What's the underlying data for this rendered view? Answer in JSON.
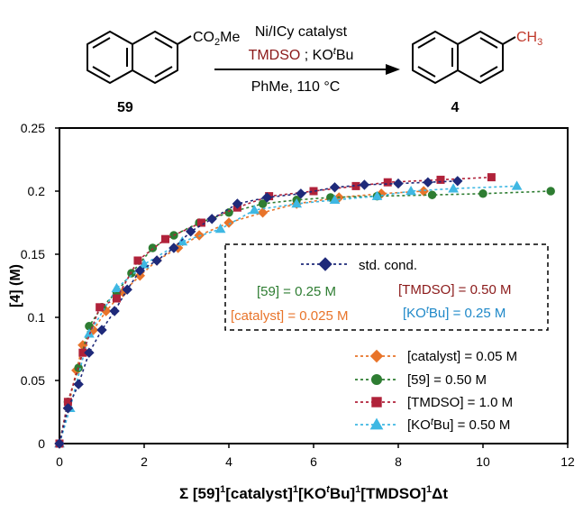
{
  "scheme": {
    "reactant_label": "59",
    "product_label": "4",
    "reactant_substituent": "CO2Me",
    "product_substituent": "CH3",
    "conditions": {
      "line1": "Ni/ICy catalyst",
      "line2_reagent": "TMDSO",
      "line2_sep": " ; ",
      "line2_base": "KOtBu",
      "line3": "PhMe, 110 °C"
    },
    "colors": {
      "product_methyl": "#c0392b",
      "tmdso": "#8b1a1a"
    }
  },
  "chart_data": {
    "type": "line",
    "ylabel": "[4] (M)",
    "xlabel": "Σ [59]1[catalyst]1[KOtBu]1[TMDSO]1Δt",
    "xlim": [
      0,
      12
    ],
    "ylim": [
      0,
      0.25
    ],
    "x_ticks": [
      0,
      2,
      4,
      6,
      8,
      10,
      12
    ],
    "y_ticks": [
      0,
      0.05,
      0.1,
      0.15,
      0.2,
      0.25
    ],
    "y_tick_labels": [
      "0",
      "0.05",
      "0.1",
      "0.15",
      "0.2",
      "0.25"
    ],
    "grid": false,
    "legend_box": {
      "title_series": "std. cond.",
      "conditions": [
        {
          "text": "[59] = 0.25 M",
          "color": "#2e7d32"
        },
        {
          "text": "[TMDSO] = 0.50 M",
          "color": "#8b1a1a"
        },
        {
          "text": "[catalyst] = 0.025 M",
          "color": "#e8742a"
        },
        {
          "text": "[KOtBu] = 0.25 M",
          "color": "#1e88c8"
        }
      ]
    },
    "series": [
      {
        "name": "std. cond.",
        "color": "#1f2a7a",
        "marker": "diamond",
        "x": [
          0,
          0.2,
          0.45,
          0.7,
          1.0,
          1.3,
          1.6,
          1.9,
          2.3,
          2.7,
          3.1,
          3.6,
          4.2,
          4.9,
          5.7,
          6.5,
          7.2,
          8.0,
          8.7,
          9.4
        ],
        "y": [
          0,
          0.028,
          0.047,
          0.072,
          0.09,
          0.105,
          0.122,
          0.137,
          0.145,
          0.155,
          0.168,
          0.178,
          0.19,
          0.195,
          0.198,
          0.203,
          0.205,
          0.206,
          0.207,
          0.208
        ]
      },
      {
        "name": "[catalyst] = 0.05 M",
        "color": "#e8742a",
        "marker": "diamond",
        "x": [
          0,
          0.2,
          0.4,
          0.55,
          0.8,
          1.1,
          1.5,
          1.9,
          2.3,
          2.8,
          3.3,
          4.0,
          4.8,
          5.6,
          6.6,
          7.6,
          8.6
        ],
        "y": [
          0,
          0.028,
          0.058,
          0.078,
          0.09,
          0.105,
          0.12,
          0.133,
          0.145,
          0.155,
          0.165,
          0.175,
          0.183,
          0.19,
          0.195,
          0.198,
          0.2
        ]
      },
      {
        "name": "[59] = 0.50 M",
        "color": "#2e7d32",
        "marker": "circle",
        "x": [
          0,
          0.2,
          0.45,
          0.7,
          1.0,
          1.35,
          1.7,
          2.2,
          2.7,
          3.3,
          4.0,
          4.8,
          5.6,
          6.4,
          7.5,
          8.8,
          10.0,
          11.6
        ],
        "y": [
          0,
          0.033,
          0.06,
          0.093,
          0.108,
          0.12,
          0.135,
          0.155,
          0.165,
          0.175,
          0.183,
          0.19,
          0.193,
          0.195,
          0.196,
          0.197,
          0.198,
          0.2
        ]
      },
      {
        "name": "[TMDSO] = 1.0 M",
        "color": "#b0223a",
        "marker": "square",
        "x": [
          0,
          0.2,
          0.55,
          0.95,
          1.35,
          1.85,
          2.5,
          3.35,
          4.2,
          4.95,
          6.0,
          7.0,
          7.75,
          9.0,
          10.2
        ],
        "y": [
          0,
          0.033,
          0.072,
          0.108,
          0.115,
          0.145,
          0.162,
          0.175,
          0.187,
          0.196,
          0.2,
          0.204,
          0.207,
          0.209,
          0.211
        ]
      },
      {
        "name": "[KOtBu] = 0.50 M",
        "color": "#3fb8e3",
        "marker": "triangle",
        "x": [
          0,
          0.25,
          0.7,
          1.35,
          2.0,
          2.9,
          3.8,
          4.6,
          5.6,
          6.5,
          7.5,
          8.3,
          9.3,
          10.8
        ],
        "y": [
          0,
          0.028,
          0.087,
          0.123,
          0.142,
          0.16,
          0.17,
          0.185,
          0.19,
          0.193,
          0.196,
          0.2,
          0.202,
          0.204
        ]
      }
    ],
    "bottom_legend": [
      {
        "series_index": 1,
        "label": "[catalyst] = 0.05 M"
      },
      {
        "series_index": 2,
        "label": "[59] = 0.50 M"
      },
      {
        "series_index": 3,
        "label": "[TMDSO] = 1.0 M"
      },
      {
        "series_index": 4,
        "label": "[KOtBu] = 0.50 M"
      }
    ]
  }
}
